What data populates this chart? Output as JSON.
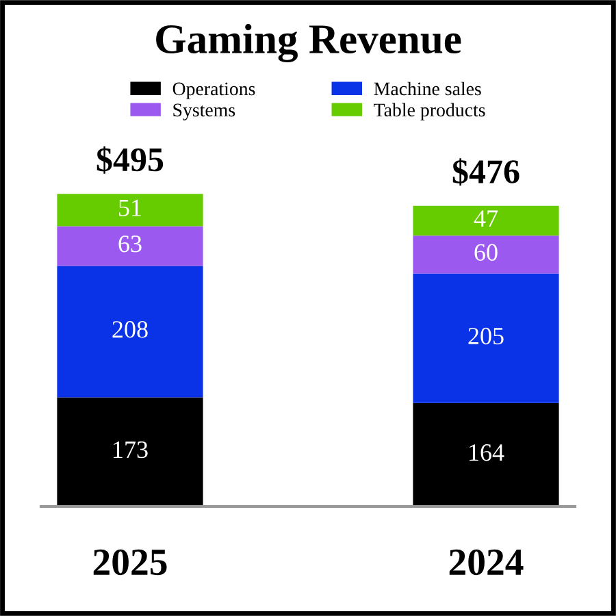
{
  "chart_data": {
    "type": "bar",
    "title": "Gaming Revenue",
    "stacked": true,
    "data_labels": true,
    "categories": [
      "2025",
      "2024"
    ],
    "series": [
      {
        "name": "Operations",
        "color": "#000000",
        "values": [
          173,
          164
        ]
      },
      {
        "name": "Machine sales",
        "color": "#0a32e6",
        "values": [
          208,
          205
        ]
      },
      {
        "name": "Systems",
        "color": "#9b59f0",
        "values": [
          63,
          60
        ]
      },
      {
        "name": "Table products",
        "color": "#66cc00",
        "values": [
          51,
          47
        ]
      }
    ],
    "totals": [
      "$495",
      "$476"
    ],
    "legend": "top",
    "grid": false
  }
}
